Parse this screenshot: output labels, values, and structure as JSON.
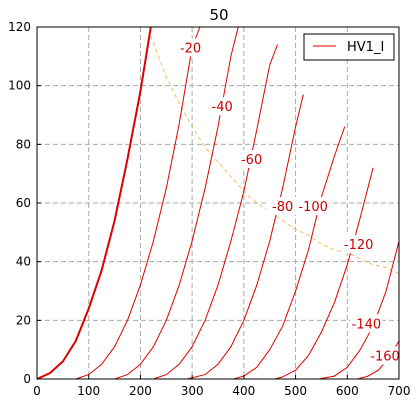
{
  "chart_data": {
    "type": "line",
    "title": "50",
    "xlabel": "",
    "ylabel": "",
    "xlim": [
      0,
      700
    ],
    "ylim": [
      0,
      120
    ],
    "xticks": [
      0,
      100,
      200,
      300,
      400,
      500,
      600,
      700
    ],
    "yticks": [
      0,
      20,
      40,
      60,
      80,
      100,
      120
    ],
    "grid": true,
    "legend": {
      "placement": "top-right",
      "entries": [
        "HV1_I"
      ]
    },
    "colors": {
      "curve": "#dd0000",
      "dissipation": "#f0c060",
      "grid": "#aaaaaa"
    },
    "series": [
      {
        "name": "HV1_I",
        "grid_bias": "0",
        "label": "",
        "label_at": [
          0,
          0
        ],
        "bold": true,
        "points": [
          [
            0,
            0
          ],
          [
            25,
            2
          ],
          [
            50,
            6
          ],
          [
            75,
            13
          ],
          [
            100,
            24
          ],
          [
            125,
            37
          ],
          [
            150,
            54
          ],
          [
            175,
            75
          ],
          [
            200,
            98
          ],
          [
            220,
            120
          ]
        ]
      },
      {
        "grid_bias": "-20",
        "label": "-20",
        "label_at": [
          297,
          113
        ],
        "bold": false,
        "points": [
          [
            75,
            0
          ],
          [
            100,
            1.5
          ],
          [
            125,
            5
          ],
          [
            150,
            11
          ],
          [
            175,
            20
          ],
          [
            200,
            32
          ],
          [
            225,
            47
          ],
          [
            250,
            65
          ],
          [
            275,
            87
          ],
          [
            300,
            113
          ],
          [
            315,
            120
          ]
        ]
      },
      {
        "grid_bias": "-40",
        "label": "-40",
        "label_at": [
          358,
          93
        ],
        "bold": false,
        "points": [
          [
            150,
            0
          ],
          [
            175,
            1.5
          ],
          [
            200,
            5
          ],
          [
            225,
            11
          ],
          [
            250,
            20
          ],
          [
            275,
            32
          ],
          [
            300,
            47
          ],
          [
            325,
            65
          ],
          [
            350,
            86
          ],
          [
            375,
            110
          ],
          [
            389,
            120
          ]
        ]
      },
      {
        "grid_bias": "-60",
        "label": "-60",
        "label_at": [
          415,
          75
        ],
        "bold": false,
        "points": [
          [
            225,
            0
          ],
          [
            250,
            1.5
          ],
          [
            275,
            5
          ],
          [
            300,
            11
          ],
          [
            325,
            20
          ],
          [
            350,
            32
          ],
          [
            375,
            47
          ],
          [
            400,
            64
          ],
          [
            425,
            85
          ],
          [
            450,
            107
          ],
          [
            465,
            114
          ]
        ]
      },
      {
        "grid_bias": "-80",
        "label": "-80",
        "label_at": [
          475,
          59
        ],
        "bold": false,
        "points": [
          [
            290,
            0
          ],
          [
            325,
            1.5
          ],
          [
            350,
            5
          ],
          [
            375,
            11
          ],
          [
            400,
            20
          ],
          [
            425,
            32
          ],
          [
            450,
            47
          ],
          [
            475,
            65
          ],
          [
            500,
            86
          ],
          [
            515,
            97
          ]
        ]
      },
      {
        "grid_bias": "-100",
        "label": "-100",
        "label_at": [
          534,
          59
        ],
        "bold": false,
        "points": [
          [
            380,
            0
          ],
          [
            400,
            1
          ],
          [
            425,
            4
          ],
          [
            450,
            10
          ],
          [
            475,
            18
          ],
          [
            500,
            30
          ],
          [
            525,
            44
          ],
          [
            550,
            62
          ],
          [
            575,
            76
          ],
          [
            595,
            86
          ]
        ]
      },
      {
        "grid_bias": "-120",
        "label": "-120",
        "label_at": [
          622,
          46
        ],
        "bold": false,
        "points": [
          [
            460,
            0
          ],
          [
            475,
            0.7
          ],
          [
            500,
            3
          ],
          [
            525,
            8
          ],
          [
            550,
            16
          ],
          [
            575,
            26
          ],
          [
            600,
            39
          ],
          [
            625,
            55
          ],
          [
            650,
            72
          ]
        ]
      },
      {
        "grid_bias": "-140",
        "label": "-140",
        "label_at": [
          637,
          19
        ],
        "bold": false,
        "points": [
          [
            545,
            0
          ],
          [
            575,
            1
          ],
          [
            600,
            4
          ],
          [
            625,
            10
          ],
          [
            650,
            18
          ],
          [
            675,
            30
          ],
          [
            700,
            47
          ]
        ]
      },
      {
        "grid_bias": "-160",
        "label": "-160",
        "label_at": [
          673,
          8
        ],
        "bold": false,
        "points": [
          [
            620,
            0
          ],
          [
            640,
            1
          ],
          [
            660,
            3
          ],
          [
            680,
            7
          ],
          [
            700,
            13
          ]
        ]
      }
    ],
    "dissipation_curve": {
      "points": [
        [
          220,
          117
        ],
        [
          250,
          103
        ],
        [
          275,
          94
        ],
        [
          300,
          86
        ],
        [
          325,
          79
        ],
        [
          350,
          74
        ],
        [
          375,
          69
        ],
        [
          400,
          64
        ],
        [
          425,
          60
        ],
        [
          450,
          57
        ],
        [
          475,
          54
        ],
        [
          500,
          51
        ],
        [
          525,
          49
        ],
        [
          550,
          46
        ],
        [
          575,
          44
        ],
        [
          600,
          43
        ],
        [
          625,
          41
        ],
        [
          650,
          39
        ],
        [
          675,
          38
        ],
        [
          700,
          36
        ]
      ]
    }
  }
}
